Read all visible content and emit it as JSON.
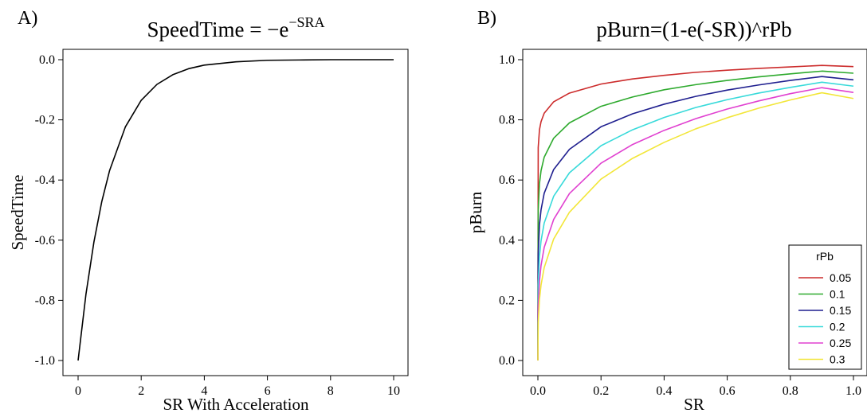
{
  "chart_data": [
    {
      "panel_label": "A)",
      "type": "line",
      "title": "SpeedTime = −e",
      "title_superscript": "−SRA",
      "xlabel": "SR With Acceleration",
      "ylabel": "SpeedTime",
      "xlim": [
        0,
        10
      ],
      "ylim": [
        -1.0,
        0.0
      ],
      "xticks": [
        "0",
        "2",
        "4",
        "6",
        "8",
        "10"
      ],
      "xtick_values": [
        0,
        2,
        4,
        6,
        8,
        10
      ],
      "yticks": [
        "-1.0",
        "-0.8",
        "-0.6",
        "-0.4",
        "-0.2",
        "0.0"
      ],
      "ytick_values": [
        -1.0,
        -0.8,
        -0.6,
        -0.4,
        -0.2,
        0.0
      ],
      "grid": false,
      "series": [
        {
          "color": "#000000",
          "x": [
            0,
            0.25,
            0.5,
            0.75,
            1,
            1.5,
            2,
            2.5,
            3,
            3.5,
            4,
            5,
            6,
            7,
            8,
            9,
            10
          ],
          "y": [
            -1.0,
            -0.779,
            -0.607,
            -0.472,
            -0.368,
            -0.223,
            -0.135,
            -0.082,
            -0.05,
            -0.03,
            -0.018,
            -0.007,
            -0.002,
            -0.001,
            0.0,
            0.0,
            0.0
          ]
        }
      ]
    },
    {
      "panel_label": "B)",
      "type": "line",
      "title": "pBurn=(1-e(-SR))^rPb",
      "xlabel": "SR",
      "ylabel": "pBurn",
      "xlim": [
        0,
        1
      ],
      "ylim": [
        0,
        1
      ],
      "xticks": [
        "0.0",
        "0.2",
        "0.4",
        "0.6",
        "0.8",
        "1.0"
      ],
      "xtick_values": [
        0,
        0.2,
        0.4,
        0.6,
        0.8,
        1.0
      ],
      "yticks": [
        "0.0",
        "0.2",
        "0.4",
        "0.6",
        "0.8",
        "1.0"
      ],
      "ytick_values": [
        0,
        0.2,
        0.4,
        0.6,
        0.8,
        1.0
      ],
      "grid": false,
      "legend": {
        "title": "rPb",
        "placement": "bottom-right"
      },
      "x": [
        0,
        0.001,
        0.005,
        0.01,
        0.02,
        0.05,
        0.1,
        0.2,
        0.3,
        0.4,
        0.5,
        0.6,
        0.7,
        0.8,
        0.9,
        1.0
      ],
      "series": [
        {
          "name": "0.05",
          "color": "#cc2b2b",
          "y": [
            0,
            0.708,
            0.767,
            0.794,
            0.822,
            0.86,
            0.889,
            0.919,
            0.936,
            0.948,
            0.958,
            0.965,
            0.971,
            0.976,
            0.981,
            0.977
          ]
        },
        {
          "name": "0.1",
          "color": "#2eaa2e",
          "y": [
            0,
            0.501,
            0.588,
            0.631,
            0.676,
            0.739,
            0.79,
            0.845,
            0.876,
            0.9,
            0.917,
            0.931,
            0.943,
            0.953,
            0.962,
            0.955
          ]
        },
        {
          "name": "0.15",
          "color": "#1f1f8f",
          "y": [
            0,
            0.355,
            0.451,
            0.501,
            0.556,
            0.635,
            0.702,
            0.777,
            0.82,
            0.852,
            0.878,
            0.899,
            0.916,
            0.931,
            0.944,
            0.933
          ]
        },
        {
          "name": "0.2",
          "color": "#38dada",
          "y": [
            0,
            0.251,
            0.346,
            0.398,
            0.457,
            0.546,
            0.624,
            0.714,
            0.767,
            0.808,
            0.841,
            0.867,
            0.889,
            0.908,
            0.925,
            0.912
          ]
        },
        {
          "name": "0.25",
          "color": "#e040d0",
          "y": [
            0,
            0.178,
            0.265,
            0.316,
            0.376,
            0.469,
            0.555,
            0.656,
            0.718,
            0.765,
            0.804,
            0.836,
            0.863,
            0.887,
            0.907,
            0.891
          ]
        },
        {
          "name": "0.3",
          "color": "#f2e638",
          "y": [
            0,
            0.126,
            0.203,
            0.251,
            0.309,
            0.404,
            0.493,
            0.603,
            0.672,
            0.725,
            0.77,
            0.807,
            0.839,
            0.866,
            0.89,
            0.871
          ]
        }
      ]
    }
  ]
}
